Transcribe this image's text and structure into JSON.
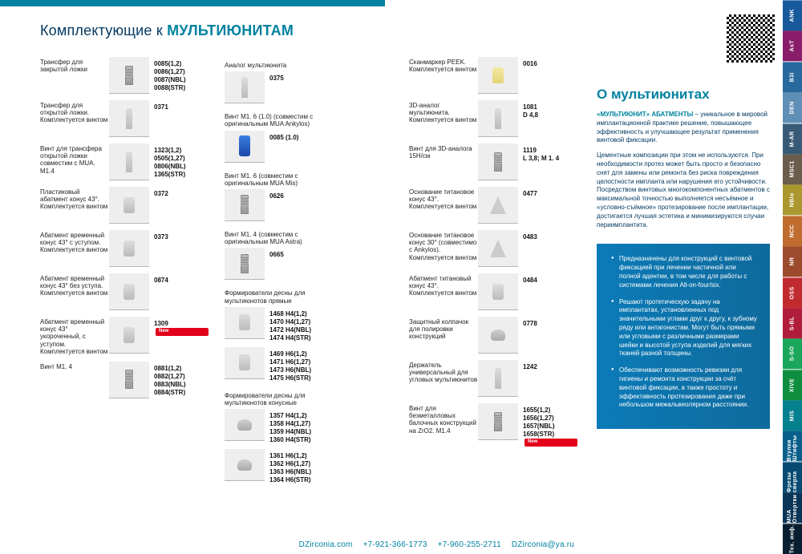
{
  "page": {
    "title_prefix": "Комплектующие к ",
    "title_strong": "МУЛЬТИЮНИТАМ"
  },
  "col1": [
    {
      "label": "Трансфер для закрытой ложки",
      "icon": "ic-screw",
      "codes": [
        "0085(1,2)",
        "0086(1,27)",
        "0087(NBL)",
        "0088(STR)"
      ]
    },
    {
      "label": "Трансфер для открытой ложки. Комплектуется винтом",
      "icon": "ic-pin",
      "codes": [
        "0371"
      ]
    },
    {
      "label": "Винт для трансфера открытой ложки совместим с MUA. M1.4",
      "icon": "ic-pin",
      "codes": [
        "1323(1,2)",
        "0505(1,27)",
        "0806(NBL)",
        "1365(STR)"
      ]
    },
    {
      "label": "Пластиковый абатмент конус 43°. Комплектуется винтом",
      "icon": "ic-cyl",
      "codes": [
        "0372"
      ]
    },
    {
      "label": "Абатмент временный конус 43° с уступом. Комплектуется винтом",
      "icon": "ic-cyl",
      "codes": [
        "0373"
      ]
    },
    {
      "label": "Абатмент временный конус 43° без уступа. Комплектуется винтом",
      "icon": "ic-cyl",
      "codes": [
        "0874"
      ]
    },
    {
      "label": "Абатмент временный конус 43° укороченный, с уступом. Комплектуется винтом",
      "icon": "ic-cyl",
      "codes": [
        "1309"
      ],
      "new": true
    },
    {
      "label": "Винт M1. 4",
      "icon": "ic-screw",
      "codes": [
        "0881(1,2)",
        "0882(1,27)",
        "0883(NBL)",
        "0884(STR)"
      ]
    }
  ],
  "col2_groups": [
    {
      "label": "Аналог мультиюнита",
      "items": [
        {
          "icon": "ic-pin",
          "codes": [
            "0375"
          ]
        }
      ]
    },
    {
      "label": "Винт M1. 6 (1.0) (совместим с оригинальным MUA Ankylos)",
      "items": [
        {
          "icon": "ic-blue",
          "codes": [
            "0085 (1.0)"
          ]
        }
      ]
    },
    {
      "label": "Винт M1. 6 (совместим с оригинальным MUA Mis)",
      "items": [
        {
          "icon": "ic-screw",
          "codes": [
            "0626"
          ]
        }
      ]
    },
    {
      "label": "Винт M1. 4 (совместим с оригинальным MUA Astra)",
      "items": [
        {
          "icon": "ic-screw",
          "codes": [
            "0665"
          ]
        }
      ]
    },
    {
      "label": "Формирователи десны для мультиюнотов прямые",
      "items": [
        {
          "icon": "ic-cyl",
          "codes": [
            "1468 H4(1,2)",
            "1470 H4(1,27)",
            "1472 H4(NBL)",
            "1474 H4(STR)"
          ]
        },
        {
          "icon": "ic-cyl",
          "codes": [
            "1469 H6(1,2)",
            "1471 H6(1,27)",
            "1473 H6(NBL)",
            "1475 H6(STR)"
          ]
        }
      ]
    },
    {
      "label": "Формирователи десны для мультиюнотов конусные",
      "items": [
        {
          "icon": "ic-cap",
          "codes": [
            "1357 H4(1,2)",
            "1358 H4(1,27)",
            "1359 H4(NBL)",
            "1360 H4(STR)"
          ]
        },
        {
          "icon": "ic-cap",
          "codes": [
            "1361 H6(1,2)",
            "1362 H6(1,27)",
            "1363 H6(NBL)",
            "1364 H6(STR)"
          ]
        }
      ]
    }
  ],
  "col3": [
    {
      "label": "Сканмаркер PEEK. Комплектуется винтом",
      "icon": "ic-peek",
      "codes": [
        "0016"
      ]
    },
    {
      "label": "3D-аналог мультиюнита. Комплектуется винтом",
      "icon": "ic-pin",
      "codes": [
        "1081",
        "D 4,8"
      ]
    },
    {
      "label": "Винт для 3D-аналога 15Н/см",
      "icon": "ic-screw",
      "codes": [
        "1119",
        "L 3,8; M 1. 4"
      ]
    },
    {
      "label": "Основание титановое конус 43°. Комплектуется винтом",
      "icon": "ic-cone",
      "codes": [
        "0477"
      ]
    },
    {
      "label": "Основание титановое конус 30° (совместимо с Ankylos). Комплектуется винтом",
      "icon": "ic-cone",
      "codes": [
        "0483"
      ]
    },
    {
      "label": "Абатмент титановый конус 43°. Комплектуется винтом",
      "icon": "ic-cyl",
      "codes": [
        "0484"
      ]
    },
    {
      "label": "Защитный колпачок для полировки конструкций",
      "icon": "ic-cap",
      "codes": [
        "0778"
      ]
    },
    {
      "label": "Держатель универсальный для угловых мультиюнитов",
      "icon": "ic-pin",
      "codes": [
        "1242"
      ]
    },
    {
      "label": "Винт для безметалловых балочных конструкций на ZrO2. M1.4",
      "icon": "ic-screw",
      "codes": [
        "1655(1,2)",
        "1656(1,27)",
        "1657(NBL)",
        "1658(STR)"
      ],
      "new": true
    }
  ],
  "info": {
    "heading": "О мультиюнитах",
    "p1_strong": "«МУЛЬТИЮНИТ» АБАТМЕНТЫ",
    "p1": " – уникальное в мировой имплантационной практике решение, повышающее эффективность и улучшающее результат применения винтовой фиксации.",
    "p2": "Цементные композиции при этом не используются. При необходимости протез может быть просто и безопасно снят для замены или ремонта без риска повреждения целостности импланта или нарушения его устойчивости. Посредством винтовых многокомпонентных абатментов с максимальной точностью выполняется несъёмное и «условно-съёмное» протезирование после имплантации, достигается лучшая эстетика и минимизируются случаи периимплантита.",
    "bullets": [
      "Предназначены для конструкций с винтовой фиксацией при лечении частичной или полной адентии, в том числе для работы с системами лечения All-on-four/six.",
      "Решают протетическую задачу на имплантатах, установленных под значительными углами друг к другу, к зубному ряду или антагонистам. Могут быть прямыми или угловыми с различными размерами шейки и высотой уступа изделий для мягких тканей разной толщины.",
      "Обеспечивают возможность ревизии для гигиены и ремонта конструкции за счёт винтовой фиксации, а также простоту и эффективность протезирования даже при небольшом межальвеолярном расстоянии."
    ]
  },
  "footer": {
    "site": "DZirconia.com",
    "ph1": "+7-921-366-1773",
    "ph2": "+7-960-255-2711",
    "mail": "DZirconia@ya.ru"
  },
  "tabs": [
    {
      "label": "ANK",
      "color": "#18599c"
    },
    {
      "label": "AsT",
      "color": "#8a1d6a"
    },
    {
      "label": "B3i",
      "color": "#286a9d"
    },
    {
      "label": "DEN",
      "color": "#5f8fb6"
    },
    {
      "label": "M-AR",
      "color": "#395a77"
    },
    {
      "label": "MSC1",
      "color": "#6b5d4b"
    },
    {
      "label": "NBio",
      "color": "#aa972e"
    },
    {
      "label": "NCC",
      "color": "#c06c2e"
    },
    {
      "label": "NR",
      "color": "#9c4b2c"
    },
    {
      "label": "OSS",
      "color": "#c12b2f"
    },
    {
      "label": "S-BL",
      "color": "#b01d3b"
    },
    {
      "label": "S-SO",
      "color": "#1aa75c"
    },
    {
      "label": "XIVE",
      "color": "#0f8e40"
    },
    {
      "label": "MIS",
      "color": "#067f8e"
    },
    {
      "label": "Втулки Штифты",
      "color": "#0a5f8a"
    },
    {
      "label": "Фрезы сверла",
      "color": "#074a72"
    },
    {
      "label": "MUA Отвертки",
      "color": "#0b3556"
    },
    {
      "label": "Тех. инф.",
      "color": "#071f30"
    }
  ],
  "badges": {
    "new_label": "New"
  }
}
